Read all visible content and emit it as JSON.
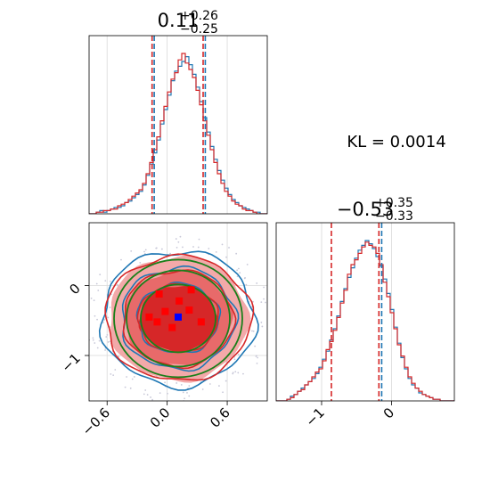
{
  "chart_data": {
    "type": "corner",
    "kl_text": "KL = 0.0014",
    "colors": {
      "blue": "#1f77b4",
      "red": "#d62728",
      "green": "#1a7f1a",
      "grid": "#d9d9d9",
      "truth": "#0000ff"
    },
    "param_x": {
      "title_value": "0.11",
      "title_plus": "+0.26",
      "title_minus": "−0.25",
      "median": 0.11,
      "lower": -0.14,
      "upper": 0.37,
      "xlim": [
        -0.78,
        1.0
      ],
      "ticks": [
        -0.6,
        0.0,
        0.6
      ],
      "tick_labels": [
        "−0.6",
        "0.0",
        "0.6"
      ]
    },
    "param_y": {
      "title_value": "−0.53",
      "title_plus": "+0.35",
      "title_minus": "−0.33",
      "median": -0.53,
      "lower_red": -0.86,
      "upper_red": -0.18,
      "lower_blue": -0.86,
      "upper_blue": -0.14,
      "ylim": [
        -1.65,
        0.9
      ],
      "ticks": [
        0,
        -1
      ],
      "tick_labels": [
        "0",
        "−1"
      ],
      "hist_xlim": [
        -1.65,
        0.9
      ],
      "hist_ticks": [
        -1,
        0
      ],
      "hist_tick_labels": [
        "−1",
        "0"
      ]
    },
    "hist1_blue": [
      0,
      0,
      1,
      2,
      1,
      2,
      3,
      4,
      4,
      5,
      7,
      8,
      10,
      12,
      14,
      18,
      24,
      31,
      38,
      46,
      56,
      65,
      74,
      83,
      89,
      92,
      95,
      98,
      93,
      87,
      79,
      70,
      60,
      51,
      42,
      34,
      27,
      21,
      16,
      12,
      9,
      7,
      5,
      4,
      3,
      2,
      1,
      1,
      0,
      0
    ],
    "hist1_red": [
      0,
      0,
      1,
      1,
      2,
      2,
      3,
      3,
      5,
      6,
      7,
      9,
      11,
      13,
      15,
      19,
      25,
      32,
      40,
      48,
      58,
      67,
      76,
      84,
      88,
      96,
      100,
      94,
      90,
      85,
      77,
      68,
      58,
      49,
      40,
      32,
      25,
      19,
      14,
      11,
      8,
      6,
      5,
      3,
      2,
      2,
      1,
      0,
      0,
      0
    ],
    "hist2_blue": [
      0,
      0,
      0,
      1,
      3,
      4,
      6,
      8,
      10,
      12,
      14,
      17,
      21,
      26,
      31,
      38,
      45,
      53,
      62,
      70,
      77,
      83,
      89,
      94,
      97,
      100,
      98,
      95,
      90,
      84,
      76,
      67,
      57,
      46,
      36,
      27,
      20,
      14,
      10,
      8,
      5,
      4,
      3,
      2,
      1,
      1,
      0,
      0,
      0,
      0
    ],
    "hist2_red": [
      0,
      0,
      0,
      1,
      2,
      4,
      6,
      7,
      10,
      12,
      15,
      18,
      20,
      25,
      32,
      37,
      44,
      52,
      61,
      69,
      79,
      85,
      88,
      92,
      96,
      99,
      97,
      96,
      92,
      85,
      74,
      65,
      55,
      45,
      35,
      28,
      21,
      15,
      11,
      8,
      6,
      4,
      3,
      2,
      1,
      1,
      0,
      0,
      0,
      0
    ],
    "truth_point": {
      "x": 0.11,
      "y": -0.45
    }
  }
}
